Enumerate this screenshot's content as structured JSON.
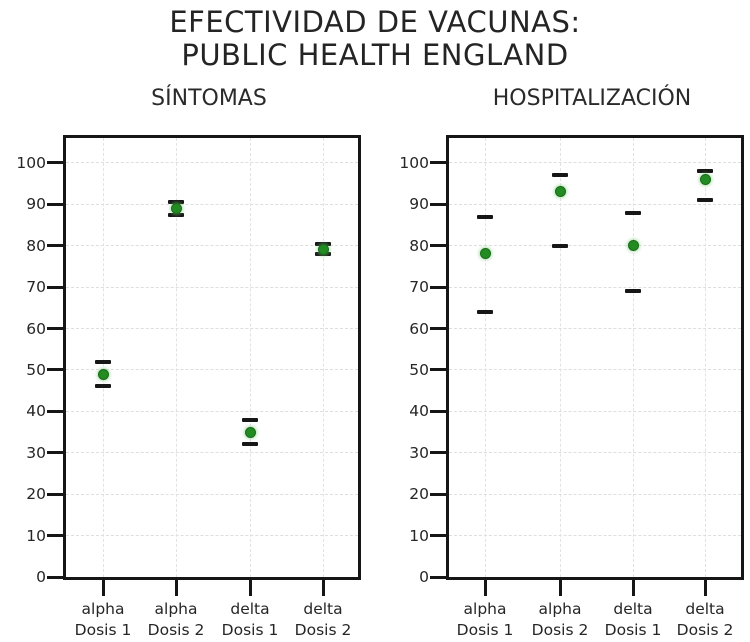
{
  "title": {
    "line1": "EFECTIVIDAD DE VACUNAS:",
    "line2": "PUBLIC HEALTH ENGLAND"
  },
  "colors": {
    "point_green": "#228b22",
    "errorbar_black": "#161616",
    "axis_black": "#161616",
    "grid_gray": "#dedede"
  },
  "chart_data": [
    {
      "type": "scatter",
      "title": "SÍNTOMAS",
      "categories": [
        [
          "alpha",
          "Dosis 1"
        ],
        [
          "alpha",
          "Dosis 2"
        ],
        [
          "delta",
          "Dosis 1"
        ],
        [
          "delta",
          "Dosis 2"
        ]
      ],
      "series": [
        {
          "name": "efectividad",
          "values": [
            49,
            89,
            35,
            79
          ],
          "ci_low": [
            46,
            87.5,
            32,
            78
          ],
          "ci_high": [
            52,
            90.5,
            38,
            80.5
          ]
        }
      ],
      "xlabel": "",
      "ylabel": "",
      "ylim": [
        0,
        106
      ],
      "yticks": [
        0,
        10,
        20,
        30,
        40,
        50,
        60,
        70,
        80,
        90,
        100
      ],
      "grid": true,
      "legend": false,
      "point_color": "#228b22",
      "errorbar_color": "#161616"
    },
    {
      "type": "scatter",
      "title": "HOSPITALIZACIÓN",
      "categories": [
        [
          "alpha",
          "Dosis 1"
        ],
        [
          "alpha",
          "Dosis 2"
        ],
        [
          "delta",
          "Dosis 1"
        ],
        [
          "delta",
          "Dosis 2"
        ]
      ],
      "series": [
        {
          "name": "efectividad",
          "values": [
            78,
            93,
            80,
            96
          ],
          "ci_low": [
            64,
            80,
            69,
            91
          ],
          "ci_high": [
            87,
            97,
            88,
            98
          ]
        }
      ],
      "xlabel": "",
      "ylabel": "",
      "ylim": [
        0,
        106
      ],
      "yticks": [
        0,
        10,
        20,
        30,
        40,
        50,
        60,
        70,
        80,
        90,
        100
      ],
      "grid": true,
      "legend": false,
      "point_color": "#228b22",
      "errorbar_color": "#161616"
    }
  ]
}
